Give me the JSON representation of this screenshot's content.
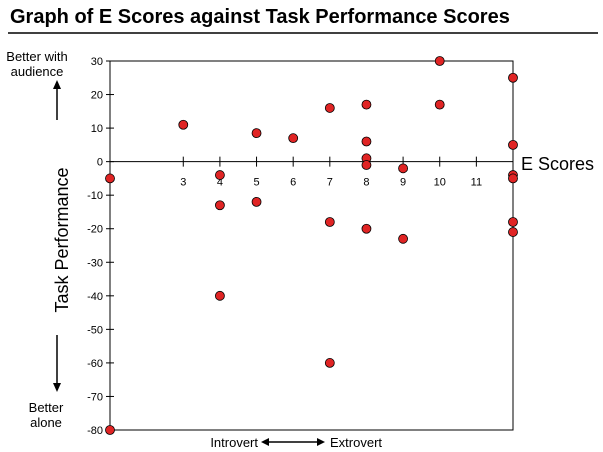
{
  "chart_data": {
    "type": "scatter",
    "title": "Graph of E Scores against Task Performance Scores",
    "xlabel": "E Scores",
    "ylabel": "Task Performance",
    "xlim": [
      1,
      12
    ],
    "ylim": [
      -80,
      30
    ],
    "x_ticks": [
      3,
      4,
      5,
      6,
      7,
      8,
      9,
      10,
      11
    ],
    "y_ticks": [
      30,
      20,
      10,
      0,
      -10,
      -20,
      -30,
      -40,
      -50,
      -60,
      -70,
      -80
    ],
    "grid": false,
    "legend": "none",
    "annotations": {
      "top_label_line1": "Better with",
      "top_label_line2": "audience",
      "bottom_label_line1": "Better",
      "bottom_label_line2": "alone",
      "x_left": "Introvert",
      "x_right": "Extrovert"
    },
    "series": [
      {
        "points": [
          {
            "x": 1,
            "y": -5
          },
          {
            "x": 1,
            "y": -80
          },
          {
            "x": 3,
            "y": 11
          },
          {
            "x": 4,
            "y": -4
          },
          {
            "x": 4,
            "y": -13
          },
          {
            "x": 4,
            "y": -40
          },
          {
            "x": 5,
            "y": 8.5
          },
          {
            "x": 5,
            "y": -12
          },
          {
            "x": 6,
            "y": 7
          },
          {
            "x": 7,
            "y": 16
          },
          {
            "x": 7,
            "y": -18
          },
          {
            "x": 7,
            "y": -60
          },
          {
            "x": 8,
            "y": 17
          },
          {
            "x": 8,
            "y": 6
          },
          {
            "x": 8,
            "y": 1
          },
          {
            "x": 8,
            "y": -1
          },
          {
            "x": 8,
            "y": -20
          },
          {
            "x": 9,
            "y": -2
          },
          {
            "x": 9,
            "y": -23
          },
          {
            "x": 10,
            "y": 30
          },
          {
            "x": 10,
            "y": 17
          },
          {
            "x": 12,
            "y": 25
          },
          {
            "x": 12,
            "y": 5
          },
          {
            "x": 12,
            "y": -4
          },
          {
            "x": 12,
            "y": -5
          },
          {
            "x": 12,
            "y": -18
          },
          {
            "x": 12,
            "y": -21
          }
        ]
      }
    ],
    "colors": {
      "point_fill": "#e02424",
      "point_stroke": "#000000",
      "axis": "#000000",
      "frame": "#000000"
    }
  }
}
